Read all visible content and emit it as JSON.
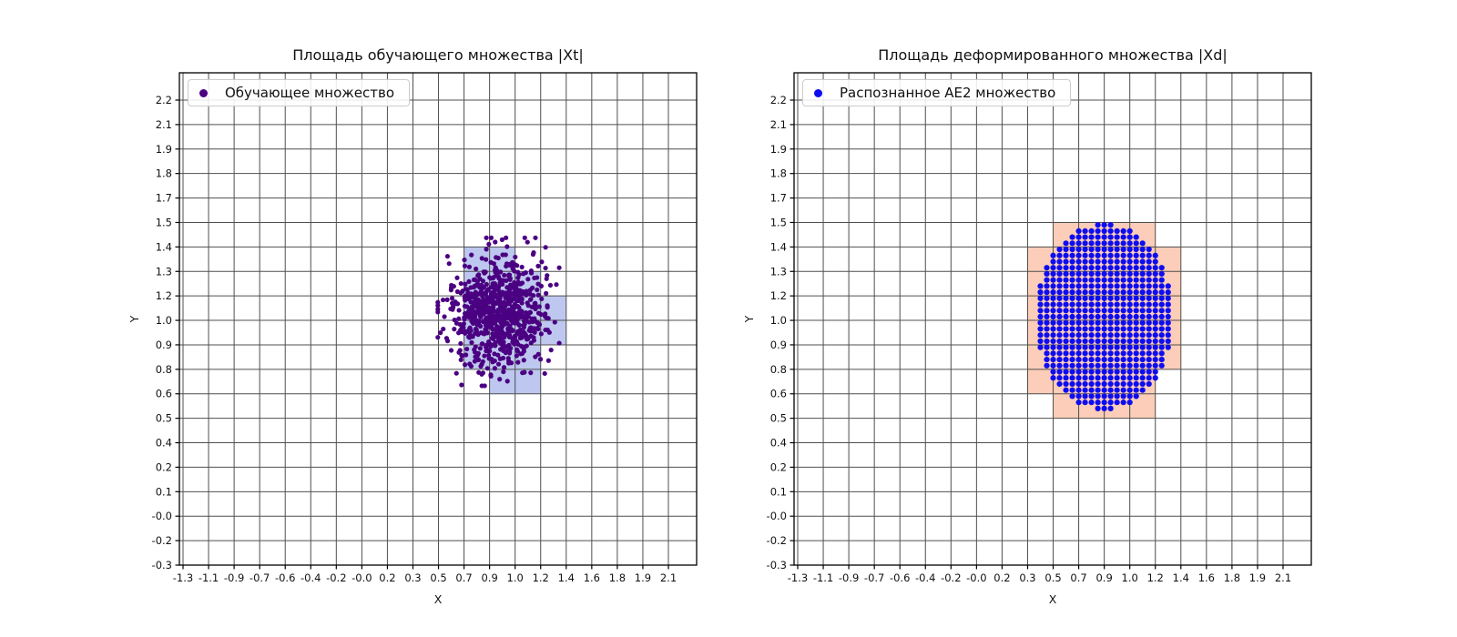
{
  "figure": {
    "background": "#ffffff"
  },
  "chart_data": [
    {
      "type": "scatter",
      "title": "Площадь обучающего множества |Xt|",
      "xlabel": "X",
      "ylabel": "Y",
      "grid": true,
      "x_range": [
        -1.3,
        2.1
      ],
      "y_range": [
        -0.3,
        2.2
      ],
      "x_tick_labels": [
        "-1.3",
        "-1.1",
        "-0.9",
        "-0.7",
        "-0.6",
        "-0.4",
        "-0.2",
        "-0.0",
        "0.2",
        "0.3",
        "0.5",
        "0.7",
        "0.9",
        "1.0",
        "1.2",
        "1.4",
        "1.6",
        "1.8",
        "1.9",
        "2.1"
      ],
      "y_tick_labels": [
        "2.2",
        "2.1",
        "1.9",
        "1.8",
        "1.7",
        "1.5",
        "1.4",
        "1.3",
        "1.2",
        "1.0",
        "0.9",
        "0.8",
        "0.6",
        "0.5",
        "0.4",
        "0.2",
        "0.1",
        "-0.0",
        "-0.2",
        "-0.3"
      ],
      "legend": {
        "label": "Обучающее множество",
        "position": "upper left",
        "marker_color": "#4B0082"
      },
      "shade": {
        "color": "#bdc7ef",
        "cells": [
          {
            "x": [
              "0.7",
              "1.0"
            ],
            "y": [
              "1.4",
              "1.3"
            ]
          },
          {
            "x": [
              "0.7",
              "1.2"
            ],
            "y": [
              "1.3",
              "1.2"
            ]
          },
          {
            "x": [
              "0.7",
              "1.4"
            ],
            "y": [
              "1.2",
              "1.0"
            ]
          },
          {
            "x": [
              "0.7",
              "1.4"
            ],
            "y": [
              "1.0",
              "0.9"
            ]
          },
          {
            "x": [
              "0.7",
              "1.2"
            ],
            "y": [
              "0.9",
              "0.8"
            ]
          },
          {
            "x": [
              "0.9",
              "1.2"
            ],
            "y": [
              "0.8",
              "0.6"
            ]
          }
        ]
      },
      "points": {
        "kind": "gaussian_cluster",
        "center_data": [
          0.95,
          1.05
        ],
        "center_cell_idx": [
          12.35,
          8.65
        ],
        "sigma_cells": [
          0.88,
          1.12
        ],
        "clamp_sigma": 2.7,
        "count": 800,
        "color": "#4B0082",
        "radius_px": 2.6,
        "seed": 20
      }
    },
    {
      "type": "scatter",
      "title": "Площадь деформированного множества |Xd|",
      "xlabel": "X",
      "ylabel": "Y",
      "grid": true,
      "x_range": [
        -1.3,
        2.1
      ],
      "y_range": [
        -0.3,
        2.2
      ],
      "x_tick_labels": [
        "-1.3",
        "-1.1",
        "-0.9",
        "-0.7",
        "-0.6",
        "-0.4",
        "-0.2",
        "-0.0",
        "0.2",
        "0.3",
        "0.5",
        "0.7",
        "0.9",
        "1.0",
        "1.2",
        "1.4",
        "1.6",
        "1.8",
        "1.9",
        "2.1"
      ],
      "y_tick_labels": [
        "2.2",
        "2.1",
        "1.9",
        "1.8",
        "1.7",
        "1.5",
        "1.4",
        "1.3",
        "1.2",
        "1.0",
        "0.9",
        "0.8",
        "0.6",
        "0.5",
        "0.4",
        "0.2",
        "0.1",
        "-0.0",
        "-0.2",
        "-0.3"
      ],
      "legend": {
        "label": "Распознанное AE2 множество",
        "position": "upper left",
        "marker_color": "#0d0df0"
      },
      "shade": {
        "color": "#fccdb8",
        "cells": [
          {
            "x": [
              "0.5",
              "1.2"
            ],
            "y": [
              "1.5",
              "1.4"
            ]
          },
          {
            "x": [
              "0.3",
              "1.4"
            ],
            "y": [
              "1.4",
              "1.3"
            ]
          },
          {
            "x": [
              "0.3",
              "1.4"
            ],
            "y": [
              "1.3",
              "1.2"
            ]
          },
          {
            "x": [
              "0.3",
              "1.4"
            ],
            "y": [
              "1.2",
              "1.0"
            ]
          },
          {
            "x": [
              "0.3",
              "1.4"
            ],
            "y": [
              "1.0",
              "0.9"
            ]
          },
          {
            "x": [
              "0.3",
              "1.4"
            ],
            "y": [
              "0.9",
              "0.8"
            ]
          },
          {
            "x": [
              "0.3",
              "1.2"
            ],
            "y": [
              "0.8",
              "0.6"
            ]
          },
          {
            "x": [
              "0.5",
              "1.2"
            ],
            "y": [
              "0.6",
              "0.5"
            ]
          }
        ]
      },
      "points": {
        "kind": "ellipse_grid",
        "center_data": [
          0.86,
          1.02
        ],
        "center_cell_idx": [
          12.0,
          8.85
        ],
        "radius_cells": [
          2.72,
          3.78
        ],
        "step_cells": 0.25,
        "color": "#0d0df0",
        "radius_px": 3.1
      }
    }
  ]
}
